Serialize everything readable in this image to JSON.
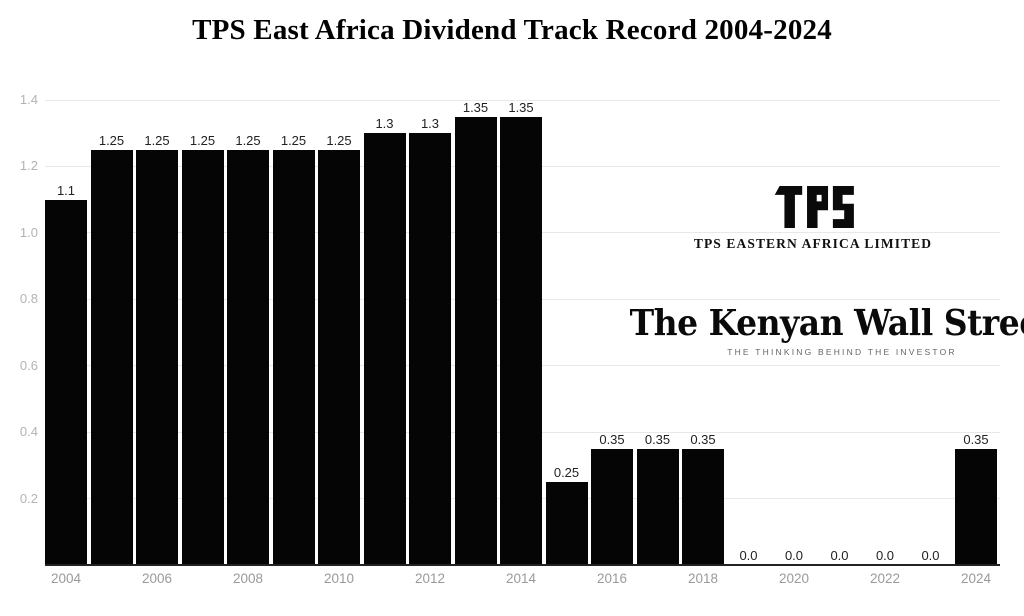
{
  "page": {
    "title": "TPS East Africa Dividend Track Record 2004-2024"
  },
  "chart_data": {
    "type": "bar",
    "title": "TPS East Africa Dividend Track Record 2004-2024",
    "categories": [
      "2004",
      "2005",
      "2006",
      "2007",
      "2008",
      "2009",
      "2010",
      "2011",
      "2012",
      "2013",
      "2014",
      "2015",
      "2016",
      "2017",
      "2018",
      "2019",
      "2020",
      "2021",
      "2022",
      "2023",
      "2024"
    ],
    "values": [
      1.1,
      1.25,
      1.25,
      1.25,
      1.25,
      1.25,
      1.25,
      1.3,
      1.3,
      1.35,
      1.35,
      0.25,
      0.35,
      0.35,
      0.35,
      0.0,
      0.0,
      0.0,
      0.0,
      0.0,
      0.35
    ],
    "value_labels": [
      "1.1",
      "1.25",
      "1.25",
      "1.25",
      "1.25",
      "1.25",
      "1.25",
      "1.3",
      "1.3",
      "1.35",
      "1.35",
      "0.25",
      "0.35",
      "0.35",
      "0.35",
      "0.0",
      "0.0",
      "0.0",
      "0.0",
      "0.0",
      "0.35"
    ],
    "xlabel": "",
    "ylabel": "",
    "ylim": [
      0,
      1.4
    ],
    "yticks": [
      "0.2",
      "0.4",
      "0.6",
      "0.8",
      "1.0",
      "1.2",
      "1.4"
    ],
    "xticks_shown": [
      "2004",
      "2006",
      "2008",
      "2010",
      "2012",
      "2014",
      "2016",
      "2018",
      "2020",
      "2022",
      "2024"
    ],
    "grid": "horizontal",
    "legend": "none",
    "bar_color": "#050505"
  },
  "watermarks": {
    "tps": {
      "logo_text": "TPS",
      "caption": "TPS EASTERN AFRICA LIMITED"
    },
    "kenyan_wall_street": {
      "headline": "The Kenyan Wall Street",
      "tagline": "THE THINKING BEHIND THE INVESTOR"
    }
  },
  "colors": {
    "background": "#ffffff",
    "bar": "#050505",
    "gridline": "#e8e8e8",
    "baseline": "#222222",
    "value_label": "#222222",
    "y_tick_label": "#b3b3b3",
    "x_tick_label": "#9a9a9a",
    "title": "#000000",
    "tagline": "#666666"
  }
}
